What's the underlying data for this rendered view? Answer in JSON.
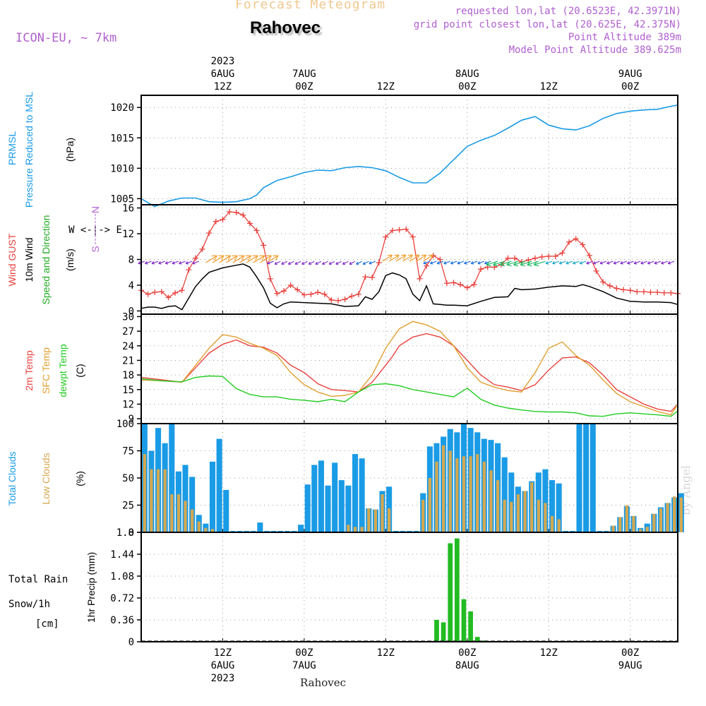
{
  "header": {
    "product_title": "Forecast Meteogram",
    "location": "Rahovec",
    "model": "ICON-EU, ~ 7km",
    "requested": "requested lon,lat (20.6523E, 42.3971N)",
    "grid_point": "grid point closest lon,lat (20.625E, 42.375N)",
    "point_altitude": "Point Altitude 389m",
    "model_altitude": "Model Point Altitude 389.625m",
    "footer_location": "Rahovec",
    "watermark": "by Angel"
  },
  "time_axis": {
    "top_labels": [
      {
        "hour": 12,
        "lines": [
          "2023",
          "6AUG",
          "12Z"
        ]
      },
      {
        "hour": 24,
        "lines": [
          "7AUG",
          "00Z"
        ]
      },
      {
        "hour": 36,
        "lines": [
          "12Z"
        ]
      },
      {
        "hour": 48,
        "lines": [
          "8AUG",
          "00Z"
        ]
      },
      {
        "hour": 60,
        "lines": [
          "12Z"
        ]
      },
      {
        "hour": 72,
        "lines": [
          "9AUG",
          "00Z"
        ]
      }
    ],
    "bottom_labels": [
      {
        "hour": 12,
        "lines": [
          "12Z",
          "6AUG",
          "2023"
        ]
      },
      {
        "hour": 24,
        "lines": [
          "00Z",
          "7AUG"
        ]
      },
      {
        "hour": 36,
        "lines": [
          "12Z"
        ]
      },
      {
        "hour": 48,
        "lines": [
          "00Z",
          "8AUG"
        ]
      },
      {
        "hour": 60,
        "lines": [
          "12Z"
        ]
      },
      {
        "hour": 72,
        "lines": [
          "00Z",
          "9AUG"
        ]
      }
    ]
  },
  "panels": {
    "pressure": {
      "labels": [
        "PRMSL",
        "Pressure Reduced to MSL"
      ],
      "unit": "(hPa)"
    },
    "wind": {
      "labels": [
        "Wind GUST",
        "10m Wind",
        "Speed and Direction"
      ],
      "unit": "(m/s)",
      "compass": [
        "N",
        "S",
        "W <-|-> E"
      ]
    },
    "temperature": {
      "labels": [
        "2m Temp",
        "SFC Temp",
        "dewpt Temp"
      ],
      "unit": "(C)"
    },
    "clouds": {
      "labels": [
        "Total Clouds",
        "Low Clouds"
      ],
      "unit": "(%)"
    },
    "precip": {
      "labels": [
        "Total  Rain",
        "Snow/1h",
        "[cm]"
      ],
      "unit": "1hr Precip (mm)"
    }
  },
  "colors": {
    "pressure": "#1a9be6",
    "gust": "#e8413c",
    "wind10m": "#000000",
    "t2m": "#e8413c",
    "sfc": "#e0a030",
    "dewpt": "#22cc22",
    "total_clouds": "#1a9be6",
    "low_clouds": "#d4a850",
    "rain": "#22bb22",
    "header_purple": "#b060d0",
    "title_orange": "#f0c890",
    "wind_label_green": "#22aa22"
  },
  "chart_data": [
    {
      "type": "line",
      "name": "pressure",
      "x_unit": "hours from 2023-08-06 00Z",
      "xlim": [
        0,
        79
      ],
      "ylim": [
        1004,
        1022
      ],
      "yticks": [
        1005,
        1010,
        1015,
        1020
      ],
      "grid": true,
      "series": [
        {
          "name": "PRMSL",
          "x": [
            0,
            2,
            4,
            6,
            8,
            10,
            12,
            14,
            16,
            17,
            18,
            20,
            22,
            24,
            26,
            28,
            30,
            32,
            34,
            36,
            38,
            40,
            42,
            44,
            46,
            48,
            50,
            52,
            54,
            56,
            58,
            60,
            62,
            64,
            66,
            68,
            70,
            72,
            74,
            76,
            78,
            79
          ],
          "values": [
            1005,
            1003.7,
            1004.6,
            1005.1,
            1005.1,
            1004.5,
            1004.4,
            1004.5,
            1005,
            1005.6,
            1006.8,
            1008,
            1008.6,
            1009.3,
            1009.7,
            1009.6,
            1010.1,
            1010.3,
            1010.1,
            1009.6,
            1008.5,
            1007.6,
            1007.6,
            1009.2,
            1011.4,
            1013.6,
            1014.6,
            1015.4,
            1016.6,
            1017.9,
            1018.5,
            1017.1,
            1016.5,
            1016.3,
            1017,
            1018.2,
            1019,
            1019.4,
            1019.6,
            1019.7,
            1020.2,
            1020.4
          ]
        }
      ]
    },
    {
      "type": "line",
      "name": "wind",
      "xlim": [
        0,
        79
      ],
      "ylim": [
        -0.5,
        16.5
      ],
      "yticks": [
        0,
        4,
        8,
        12,
        16
      ],
      "grid": true,
      "series": [
        {
          "name": "Wind GUST",
          "x": [
            0,
            1,
            2,
            3,
            4,
            5,
            6,
            7,
            8,
            9,
            10,
            11,
            12,
            13,
            14,
            15,
            16,
            17,
            18,
            19,
            20,
            21,
            22,
            23,
            24,
            25,
            26,
            27,
            28,
            29,
            30,
            31,
            32,
            33,
            34,
            35,
            36,
            37,
            38,
            39,
            40,
            41,
            42,
            43,
            44,
            45,
            46,
            47,
            48,
            49,
            50,
            51,
            52,
            53,
            54,
            55,
            56,
            57,
            58,
            59,
            60,
            61,
            62,
            63,
            64,
            65,
            66,
            67,
            68,
            69,
            70,
            71,
            72,
            73,
            74,
            75,
            76,
            77,
            78,
            79
          ],
          "values": [
            3.2,
            2.6,
            2.9,
            3.0,
            2.1,
            2.8,
            3.2,
            6.4,
            8.2,
            9.6,
            12.1,
            13.9,
            14.2,
            15.4,
            15.3,
            14.9,
            13.6,
            12.5,
            10.2,
            5.0,
            2.7,
            3.1,
            4.0,
            3.3,
            2.5,
            2.6,
            2.9,
            2.6,
            1.7,
            1.6,
            1.8,
            2.3,
            2.6,
            5.3,
            5.2,
            7.5,
            11.5,
            12.5,
            12.6,
            12.7,
            11.5,
            5.0,
            7.0,
            8.6,
            8.0,
            4.3,
            4.4,
            4.1,
            3.6,
            4.1,
            6.5,
            6.8,
            6.8,
            7.2,
            8.2,
            8.2,
            7.6,
            7.9,
            8.2,
            8.4,
            8.5,
            8.5,
            9.0,
            10.7,
            11.2,
            10.3,
            8.6,
            6.2,
            4.5,
            3.9,
            3.5,
            3.3,
            3.2,
            3.0,
            3.0,
            2.9,
            2.9,
            2.8,
            2.8,
            2.7
          ]
        },
        {
          "name": "10m Wind",
          "x": [
            0,
            1,
            2,
            3,
            4,
            5,
            6,
            8,
            9,
            10,
            12,
            14,
            15,
            16,
            17,
            18,
            19,
            20,
            21,
            22,
            24,
            26,
            28,
            30,
            32,
            33,
            34,
            35,
            36,
            37,
            38,
            39,
            40,
            41,
            42,
            43,
            44,
            45,
            46,
            48,
            50,
            52,
            54,
            55,
            56,
            58,
            60,
            62,
            64,
            65,
            66,
            68,
            70,
            72,
            74,
            76,
            78,
            79
          ],
          "values": [
            0.4,
            0.6,
            0.6,
            0.4,
            0.7,
            0.8,
            0.2,
            3.8,
            5.0,
            6.0,
            6.7,
            7.1,
            7.3,
            6.8,
            5.3,
            3.6,
            1.2,
            0.5,
            1.1,
            1.4,
            1.3,
            1.2,
            1.1,
            0.7,
            0.8,
            2.2,
            1.8,
            3.0,
            5.5,
            5.9,
            5.6,
            5.0,
            2.6,
            1.6,
            3.9,
            1.1,
            1.0,
            0.9,
            0.9,
            0.8,
            1.5,
            2.1,
            2.2,
            3.5,
            3.3,
            3.4,
            3.7,
            3.9,
            3.8,
            4.1,
            3.8,
            3.0,
            2.0,
            1.5,
            1.4,
            1.4,
            1.3,
            1.0
          ]
        }
      ]
    },
    {
      "type": "line",
      "name": "temperature",
      "xlim": [
        0,
        79
      ],
      "ylim": [
        8,
        30.5
      ],
      "yticks": [
        9,
        12,
        15,
        18,
        21,
        24,
        27,
        30
      ],
      "grid": true,
      "series": [
        {
          "name": "2m Temp",
          "x": [
            0,
            3,
            6,
            8,
            10,
            12,
            14,
            16,
            18,
            20,
            22,
            24,
            26,
            28,
            30,
            32,
            34,
            36,
            37,
            38,
            40,
            42,
            44,
            46,
            48,
            50,
            52,
            54,
            56,
            58,
            60,
            62,
            64,
            66,
            68,
            70,
            72,
            74,
            76,
            78,
            79
          ],
          "values": [
            17.5,
            17.0,
            16.5,
            19.5,
            22.5,
            24.3,
            25.2,
            24.0,
            23.7,
            22.5,
            20.0,
            18.5,
            16.2,
            15.0,
            14.8,
            14.5,
            16.5,
            20.0,
            21.8,
            24.0,
            25.8,
            26.5,
            25.8,
            24.0,
            21.0,
            18.0,
            16.0,
            15.5,
            14.8,
            16.0,
            19.0,
            21.5,
            21.7,
            20.5,
            18.0,
            15.0,
            13.5,
            12.0,
            11.0,
            10.5,
            12.0
          ]
        },
        {
          "name": "SFC Temp",
          "x": [
            0,
            3,
            6,
            8,
            10,
            12,
            14,
            16,
            18,
            20,
            22,
            24,
            26,
            28,
            30,
            32,
            34,
            36,
            37,
            38,
            40,
            42,
            44,
            46,
            48,
            50,
            52,
            54,
            56,
            58,
            60,
            62,
            64,
            66,
            68,
            70,
            72,
            74,
            76,
            78,
            79
          ],
          "values": [
            17.0,
            16.8,
            16.5,
            20.0,
            23.5,
            26.3,
            25.8,
            24.5,
            23.5,
            22.0,
            18.5,
            16.0,
            14.5,
            13.6,
            13.8,
            14.5,
            18.0,
            23.5,
            25.5,
            27.5,
            29.0,
            28.3,
            27.0,
            24.0,
            19.5,
            16.5,
            15.5,
            14.8,
            14.5,
            18.5,
            23.5,
            24.8,
            22.0,
            20.0,
            17.0,
            14.2,
            12.5,
            11.5,
            10.5,
            9.8,
            12.0
          ]
        },
        {
          "name": "dewpt Temp",
          "x": [
            0,
            3,
            6,
            8,
            10,
            12,
            14,
            16,
            18,
            20,
            22,
            24,
            26,
            28,
            30,
            32,
            34,
            36,
            38,
            40,
            42,
            44,
            46,
            48,
            50,
            52,
            54,
            56,
            58,
            60,
            62,
            64,
            66,
            68,
            70,
            72,
            74,
            76,
            78,
            79
          ],
          "values": [
            17.2,
            16.8,
            16.6,
            17.5,
            17.8,
            17.7,
            15.2,
            14.0,
            13.5,
            13.5,
            13.0,
            12.8,
            12.5,
            13.0,
            12.5,
            14.5,
            16.0,
            16.2,
            15.8,
            15.0,
            14.5,
            14.0,
            13.5,
            15.3,
            13.0,
            11.8,
            11.2,
            10.8,
            10.5,
            10.4,
            10.4,
            10.2,
            9.6,
            9.5,
            10.0,
            10.2,
            10.0,
            9.8,
            9.5,
            10.6
          ]
        }
      ]
    },
    {
      "type": "bar",
      "name": "clouds",
      "xlim": [
        0,
        79
      ],
      "ylim": [
        0,
        100
      ],
      "yticks": [
        0,
        25,
        50,
        75,
        100
      ],
      "grid": true,
      "x": [
        0,
        1,
        2,
        3,
        4,
        5,
        6,
        7,
        8,
        9,
        10,
        11,
        12,
        13,
        14,
        15,
        16,
        17,
        18,
        19,
        20,
        21,
        22,
        23,
        24,
        25,
        26,
        27,
        28,
        29,
        30,
        31,
        32,
        33,
        34,
        35,
        36,
        37,
        38,
        39,
        40,
        41,
        42,
        43,
        44,
        45,
        46,
        47,
        48,
        49,
        50,
        51,
        52,
        53,
        54,
        55,
        56,
        57,
        58,
        59,
        60,
        61,
        62,
        63,
        64,
        65,
        66,
        67,
        68,
        69,
        70,
        71,
        72,
        73,
        74,
        75,
        76,
        77,
        78,
        79
      ],
      "series": [
        {
          "name": "Total Clouds",
          "values": [
            100,
            75,
            96,
            82,
            100,
            56,
            62,
            51,
            16,
            8,
            65,
            86,
            39,
            0,
            0,
            0,
            0,
            9,
            0,
            0,
            0,
            0,
            0,
            7,
            44,
            62,
            66,
            43,
            64,
            48,
            43,
            72,
            68,
            22,
            21,
            38,
            42,
            0,
            0,
            0,
            0,
            36,
            79,
            82,
            88,
            95,
            92,
            100,
            96,
            92,
            86,
            85,
            82,
            69,
            55,
            42,
            38,
            47,
            55,
            58,
            48,
            45,
            0,
            0,
            100,
            100,
            100,
            0,
            0,
            6,
            14,
            24,
            15,
            4,
            8,
            17,
            23,
            27,
            32,
            36
          ]
        },
        {
          "name": "Low Clouds",
          "values": [
            72,
            58,
            58,
            58,
            35,
            35,
            29,
            21,
            10,
            4,
            3,
            0,
            0,
            0,
            0,
            0,
            0,
            0,
            0,
            0,
            0,
            0,
            0,
            0,
            0,
            0,
            0,
            0,
            0,
            0,
            7,
            5,
            5,
            22,
            21,
            35,
            22,
            0,
            0,
            0,
            0,
            30,
            50,
            65,
            80,
            75,
            68,
            70,
            70,
            72,
            65,
            57,
            48,
            30,
            28,
            35,
            38,
            46,
            30,
            27,
            15,
            12,
            0,
            0,
            0,
            0,
            0,
            0,
            0,
            6,
            14,
            25,
            15,
            3,
            5,
            17,
            22,
            27,
            33,
            32
          ]
        }
      ]
    },
    {
      "type": "bar",
      "name": "precip",
      "xlim": [
        0,
        79
      ],
      "ylim": [
        0,
        1.8
      ],
      "yticks": [
        0,
        0.36,
        0.72,
        1.08,
        1.44,
        1.8
      ],
      "yticklabels": [
        "0",
        "0.36",
        "0.72",
        "1.08",
        "1.44",
        "1.8"
      ],
      "grid": true,
      "x": [
        43,
        44,
        45,
        46,
        47,
        48,
        49,
        50
      ],
      "series": [
        {
          "name": "Total Rain",
          "values": [
            0.36,
            0.32,
            1.62,
            1.7,
            0.7,
            0.5,
            0.08,
            0.02
          ]
        }
      ]
    }
  ]
}
